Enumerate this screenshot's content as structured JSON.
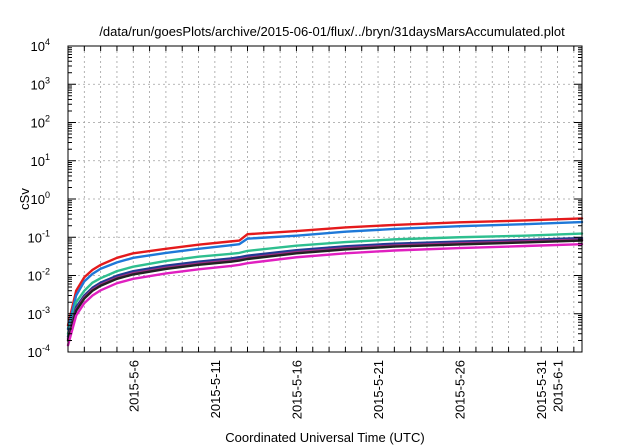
{
  "chart_data": {
    "type": "line",
    "title": "/data/run/goesPlots/archive/2015-06-01/flux/../bryn/31daysMarsAccumulated.plot",
    "xlabel": "Coordinated Universal Time (UTC)",
    "ylabel": "cSv",
    "y_scale": "log",
    "ylim": [
      0.0001,
      10000
    ],
    "xlim": [
      "2015-05-02 00:00",
      "2015-06-02 12:00"
    ],
    "x_ticks": [
      "2015-5-6",
      "2015-5-11",
      "2015-5-16",
      "2015-5-21",
      "2015-5-26",
      "2015-5-31",
      "2015-6-1"
    ],
    "y_ticks": [
      {
        "base": "10",
        "exp": "-4",
        "value": 0.0001
      },
      {
        "base": "10",
        "exp": "-3",
        "value": 0.001
      },
      {
        "base": "10",
        "exp": "-2",
        "value": 0.01
      },
      {
        "base": "10",
        "exp": "-1",
        "value": 0.1
      },
      {
        "base": "10",
        "exp": "0",
        "value": 1
      },
      {
        "base": "10",
        "exp": "1",
        "value": 10
      },
      {
        "base": "10",
        "exp": "2",
        "value": 100
      },
      {
        "base": "10",
        "exp": "3",
        "value": 1000
      },
      {
        "base": "10",
        "exp": "4",
        "value": 10000
      }
    ],
    "grid": true,
    "legend": "none",
    "x": [
      "2015-05-02 00:00",
      "2015-05-02 12:00",
      "2015-05-03 00:00",
      "2015-05-03 12:00",
      "2015-05-04 00:00",
      "2015-05-05 00:00",
      "2015-05-06 00:00",
      "2015-05-08 00:00",
      "2015-05-10 00:00",
      "2015-05-12 00:00",
      "2015-05-12 12:00",
      "2015-05-13 00:00",
      "2015-05-16 00:00",
      "2015-05-19 00:00",
      "2015-05-22 00:00",
      "2015-05-26 00:00",
      "2015-05-30 00:00",
      "2015-06-02 12:00"
    ],
    "series": [
      {
        "color": "#e41a1c",
        "values": [
          0.0005,
          0.004,
          0.009,
          0.014,
          0.019,
          0.029,
          0.038,
          0.05,
          0.064,
          0.078,
          0.082,
          0.12,
          0.145,
          0.18,
          0.21,
          0.245,
          0.275,
          0.31
        ]
      },
      {
        "color": "#1e78d8",
        "values": [
          0.0004,
          0.003,
          0.007,
          0.011,
          0.015,
          0.022,
          0.029,
          0.039,
          0.05,
          0.062,
          0.066,
          0.092,
          0.11,
          0.14,
          0.165,
          0.195,
          0.22,
          0.25
        ]
      },
      {
        "color": "#2ebf8f",
        "values": [
          0.0003,
          0.002,
          0.004,
          0.0065,
          0.0085,
          0.013,
          0.017,
          0.024,
          0.031,
          0.037,
          0.039,
          0.044,
          0.06,
          0.075,
          0.088,
          0.1,
          0.11,
          0.125
        ]
      },
      {
        "color": "#1f3a93",
        "values": [
          0.00025,
          0.0015,
          0.003,
          0.0048,
          0.0065,
          0.0099,
          0.013,
          0.018,
          0.023,
          0.028,
          0.03,
          0.033,
          0.046,
          0.058,
          0.068,
          0.077,
          0.085,
          0.095
        ]
      },
      {
        "color": "#9b2f83",
        "values": [
          0.00022,
          0.0013,
          0.0027,
          0.0043,
          0.0058,
          0.0088,
          0.0115,
          0.016,
          0.0205,
          0.025,
          0.0265,
          0.029,
          0.041,
          0.052,
          0.061,
          0.07,
          0.078,
          0.087
        ]
      },
      {
        "color": "#222222",
        "values": [
          0.0002,
          0.0012,
          0.0025,
          0.004,
          0.0054,
          0.0082,
          0.0107,
          0.0148,
          0.019,
          0.023,
          0.0245,
          0.027,
          0.038,
          0.048,
          0.057,
          0.065,
          0.073,
          0.082
        ]
      },
      {
        "color": "#e020c0",
        "values": [
          0.00015,
          0.0009,
          0.0019,
          0.003,
          0.0041,
          0.0063,
          0.0082,
          0.0113,
          0.0145,
          0.0178,
          0.019,
          0.021,
          0.03,
          0.038,
          0.045,
          0.052,
          0.059,
          0.066
        ]
      }
    ]
  }
}
